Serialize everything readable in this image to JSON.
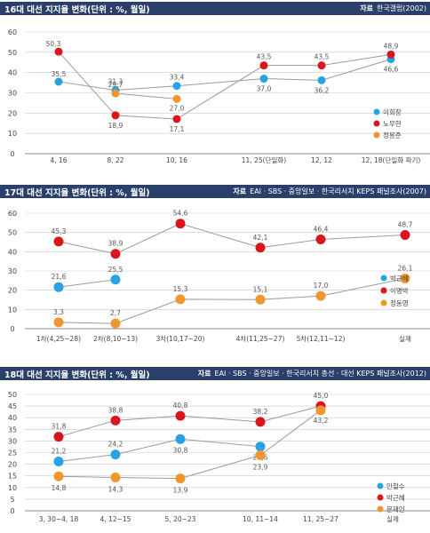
{
  "charts": [
    {
      "title": "16대 대선 지지율 변화(단위 : %, 월일)",
      "source_label": "자료",
      "source": "한국갤럽(2002)",
      "chart_data": {
        "type": "line",
        "categories": [
          "4, 16",
          "8, 22",
          "10, 16",
          "11, 25(단일화)",
          "12, 12",
          "12, 18(단일화 파기)"
        ],
        "ylim": [
          0,
          60
        ],
        "yticks": [
          0,
          10,
          20,
          30,
          40,
          50,
          60
        ],
        "legend_position": "bottom-right",
        "series": [
          {
            "name": "이회창",
            "color": "#27a3e3",
            "values": [
              35.5,
              31.3,
              33.4,
              37.0,
              36.2,
              46.6
            ],
            "labels": [
              "35,5",
              "31,3",
              "33,4",
              "37,0",
              "36,2",
              "46,6"
            ]
          },
          {
            "name": "노무현",
            "color": "#d9161c",
            "values": [
              50.3,
              18.9,
              17.1,
              43.5,
              43.5,
              48.9
            ],
            "labels": [
              "50,3",
              "18,9",
              "17,1",
              "43,5",
              "43,5",
              "48,9"
            ]
          },
          {
            "name": "정몽준",
            "color": "#f0962e",
            "values": [
              null,
              29.7,
              27.0,
              null,
              null,
              null
            ],
            "labels": [
              "",
              "29,7",
              "27,0",
              "",
              "",
              ""
            ]
          }
        ]
      }
    },
    {
      "title": "17대 대선 지지율 변화(단위 : %, 월일)",
      "source_label": "자료",
      "source": "EAI · SBS · 중앙일보 · 한국리서치 KEPS 패널조사(2007)",
      "chart_data": {
        "type": "line",
        "categories": [
          "1차(4,25~28)",
          "2차(8,10~13)",
          "3차(10,17~20)",
          "4차(11,25~27)",
          "5차(12,11~12)",
          "실제"
        ],
        "ylim": [
          0,
          60
        ],
        "yticks": [
          0,
          10,
          20,
          30,
          40,
          50,
          60
        ],
        "legend_position": "bottom-right",
        "series": [
          {
            "name": "박근혜",
            "color": "#27a3e3",
            "values": [
              21.6,
              25.5,
              null,
              null,
              null,
              null
            ],
            "labels": [
              "21,6",
              "25,5",
              "",
              "",
              "",
              ""
            ]
          },
          {
            "name": "이명박",
            "color": "#d9161c",
            "values": [
              45.3,
              38.9,
              54.6,
              42.1,
              46.4,
              48.7
            ],
            "labels": [
              "45,3",
              "38,9",
              "54,6",
              "42,1",
              "46,4",
              "48,7"
            ]
          },
          {
            "name": "정동영",
            "color": "#f0962e",
            "values": [
              3.3,
              2.7,
              15.3,
              15.1,
              17.0,
              26.1
            ],
            "labels": [
              "3,3",
              "2,7",
              "15,3",
              "15,1",
              "17,0",
              "26,1"
            ]
          }
        ]
      }
    },
    {
      "title": "18대 대선 지지율 변화(단위 : %, 월일)",
      "source_label": "자료",
      "source": "EAI · SBS · 중앙일보 · 한국리서치 총선 · 대선 KEPS 패널조사(2012)",
      "chart_data": {
        "type": "line",
        "categories": [
          "3, 30~4, 18",
          "4, 12~15",
          "5, 20~23",
          "10, 11~14",
          "11, 25~27",
          "실제"
        ],
        "ylim": [
          0,
          50
        ],
        "yticks": [
          0,
          5,
          10,
          15,
          20,
          25,
          30,
          35,
          40,
          45,
          50
        ],
        "legend_position": "bottom-right",
        "series": [
          {
            "name": "안철수",
            "color": "#27a3e3",
            "values": [
              21.2,
              24.2,
              30.8,
              27.6,
              null,
              null
            ],
            "labels": [
              "21,2",
              "24,2",
              "30,8",
              "27,6",
              "",
              ""
            ]
          },
          {
            "name": "박근혜",
            "color": "#d9161c",
            "values": [
              31.8,
              38.8,
              40.8,
              38.2,
              45.0,
              null
            ],
            "labels": [
              "31,8",
              "38,8",
              "40,8",
              "38,2",
              "45,0",
              ""
            ]
          },
          {
            "name": "문재인",
            "color": "#f0962e",
            "values": [
              14.8,
              14.3,
              13.9,
              23.9,
              43.2,
              null
            ],
            "labels": [
              "14,8",
              "14,3",
              "13,9",
              "23,9",
              "43,2",
              ""
            ]
          }
        ]
      }
    }
  ]
}
